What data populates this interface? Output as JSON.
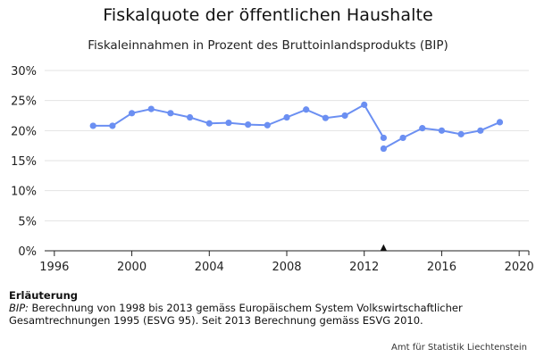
{
  "chart_data": {
    "type": "line",
    "title": "Fiskalquote der öffentlichen Haushalte",
    "subtitle": "Fiskaleinnahmen in Prozent des Bruttoinlandsprodukts (BIP)",
    "xlim": [
      1995.5,
      2020.5
    ],
    "ylim": [
      0,
      30
    ],
    "x_ticks": [
      1996,
      2000,
      2004,
      2008,
      2012,
      2016,
      2020
    ],
    "y_ticks": [
      0,
      5,
      10,
      15,
      20,
      25,
      30
    ],
    "y_tick_labels": [
      "0%",
      "5%",
      "10%",
      "15%",
      "20%",
      "25%",
      "30%"
    ],
    "grid": "horizontal",
    "color": "#6b8ff2",
    "series": [
      {
        "segment": "ESVG 95",
        "x": [
          1998,
          1999,
          2000,
          2001,
          2002,
          2003,
          2004,
          2005,
          2006,
          2007,
          2008,
          2009,
          2010,
          2011,
          2012,
          2013
        ],
        "y": [
          20.8,
          20.8,
          22.9,
          23.6,
          22.9,
          22.2,
          21.2,
          21.3,
          21.0,
          20.9,
          22.2,
          23.5,
          22.1,
          22.5,
          24.3,
          18.8
        ]
      },
      {
        "segment": "ESVG 2010",
        "x": [
          2013,
          2014,
          2015,
          2016,
          2017,
          2018,
          2019
        ],
        "y": [
          17.0,
          18.8,
          20.4,
          20.0,
          19.4,
          20.0,
          21.4
        ]
      }
    ],
    "break_marker": {
      "x": 2013,
      "symbol": "▲"
    }
  },
  "notes": {
    "heading": "Erläuterung",
    "term": "BIP:",
    "text": " Berechnung von 1998 bis 2013 gemäss Europäischem System Volkswirtschaftlicher Gesamtrechnungen 1995 (ESVG 95). Seit 2013 Berechnung gemäss ESVG 2010."
  },
  "credit": "Amt für Statistik Liechtenstein"
}
